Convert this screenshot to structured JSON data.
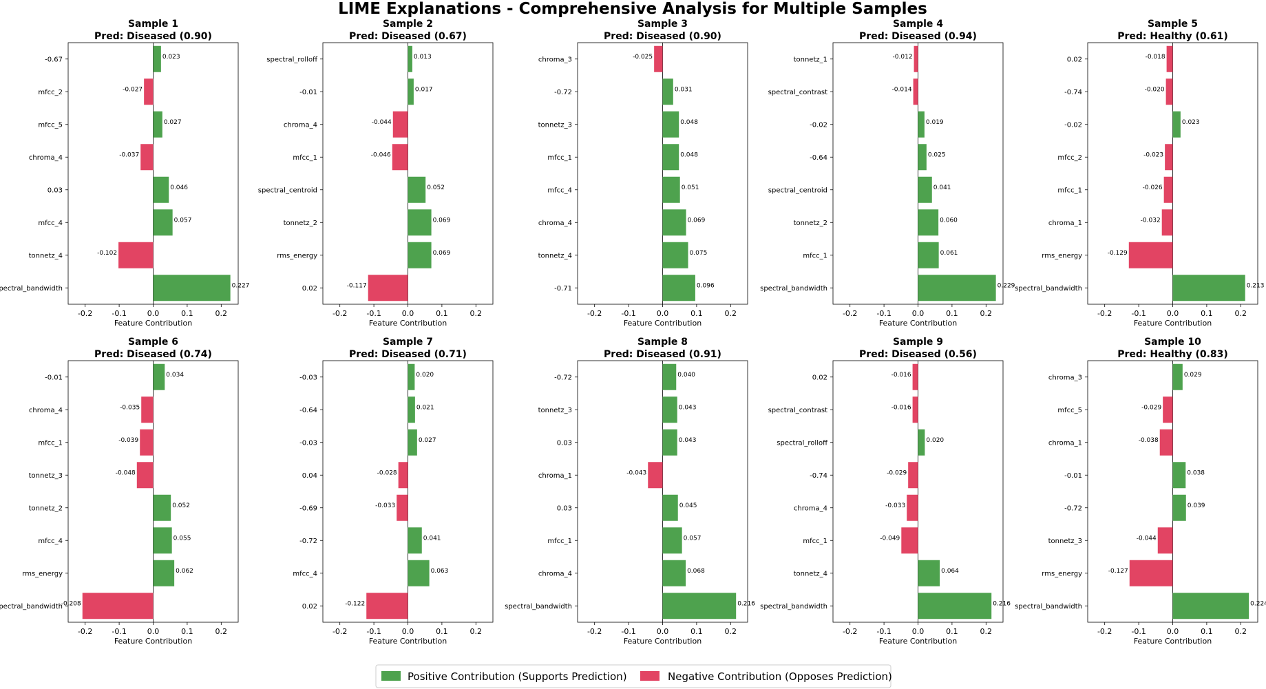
{
  "figure_title": "LIME Explanations - Comprehensive Analysis for Multiple Samples",
  "colors": {
    "positive": "#4ea24e",
    "negative": "#e24463"
  },
  "legend": {
    "positive": "Positive Contribution (Supports Prediction)",
    "negative": "Negative Contribution (Opposes Prediction)"
  },
  "chart_data": [
    {
      "type": "bar",
      "orientation": "horizontal",
      "title": "Sample 1",
      "subtitle": "Pred: Diseased (0.90)",
      "xlabel": "Feature Contribution",
      "xlim": [
        -0.25,
        0.25
      ],
      "xticks": [
        "-0.2",
        "-0.1",
        "0.0",
        "0.1",
        "0.2"
      ],
      "categories": [
        "-0.67",
        "mfcc_2",
        "mfcc_5",
        "chroma_4",
        "0.03",
        "mfcc_4",
        "tonnetz_4",
        "spectral_bandwidth"
      ],
      "values": [
        0.023,
        -0.027,
        0.027,
        -0.037,
        0.046,
        0.057,
        -0.102,
        0.227
      ],
      "labels": [
        "0.023",
        "-0.027",
        "0.027",
        "-0.037",
        "0.046",
        "0.057",
        "-0.102",
        "0.227"
      ]
    },
    {
      "type": "bar",
      "orientation": "horizontal",
      "title": "Sample 2",
      "subtitle": "Pred: Diseased (0.67)",
      "xlabel": "Feature Contribution",
      "xlim": [
        -0.25,
        0.25
      ],
      "xticks": [
        "-0.2",
        "-0.1",
        "0.0",
        "0.1",
        "0.2"
      ],
      "categories": [
        "spectral_rolloff",
        "-0.01",
        "chroma_4",
        "mfcc_1",
        "spectral_centroid",
        "tonnetz_2",
        "rms_energy",
        "0.02"
      ],
      "values": [
        0.013,
        0.017,
        -0.044,
        -0.046,
        0.052,
        0.069,
        0.069,
        -0.117
      ],
      "labels": [
        "0.013",
        "0.017",
        "-0.044",
        "-0.046",
        "0.052",
        "0.069",
        "0.069",
        "-0.117"
      ]
    },
    {
      "type": "bar",
      "orientation": "horizontal",
      "title": "Sample 3",
      "subtitle": "Pred: Diseased (0.90)",
      "xlabel": "Feature Contribution",
      "xlim": [
        -0.25,
        0.25
      ],
      "xticks": [
        "-0.2",
        "-0.1",
        "0.0",
        "0.1",
        "0.2"
      ],
      "categories": [
        "chroma_3",
        "-0.72",
        "tonnetz_3",
        "mfcc_1",
        "mfcc_4",
        "chroma_4",
        "tonnetz_4",
        "-0.71"
      ],
      "values": [
        -0.025,
        0.031,
        0.048,
        0.048,
        0.051,
        0.069,
        0.075,
        0.096
      ],
      "labels": [
        "-0.025",
        "0.031",
        "0.048",
        "0.048",
        "0.051",
        "0.069",
        "0.075",
        "0.096"
      ]
    },
    {
      "type": "bar",
      "orientation": "horizontal",
      "title": "Sample 4",
      "subtitle": "Pred: Diseased (0.94)",
      "xlabel": "Feature Contribution",
      "xlim": [
        -0.25,
        0.25
      ],
      "xticks": [
        "-0.2",
        "-0.1",
        "0.0",
        "0.1",
        "0.2"
      ],
      "categories": [
        "tonnetz_1",
        "spectral_contrast",
        "-0.02",
        "-0.64",
        "spectral_centroid",
        "tonnetz_2",
        "mfcc_1",
        "spectral_bandwidth"
      ],
      "values": [
        -0.012,
        -0.014,
        0.019,
        0.025,
        0.041,
        0.06,
        0.061,
        0.229
      ],
      "labels": [
        "-0.012",
        "-0.014",
        "0.019",
        "0.025",
        "0.041",
        "0.060",
        "0.061",
        "0.229"
      ]
    },
    {
      "type": "bar",
      "orientation": "horizontal",
      "title": "Sample 5",
      "subtitle": "Pred: Healthy (0.61)",
      "xlabel": "Feature Contribution",
      "xlim": [
        -0.25,
        0.25
      ],
      "xticks": [
        "-0.2",
        "-0.1",
        "0.0",
        "0.1",
        "0.2"
      ],
      "categories": [
        "0.02",
        "-0.74",
        "-0.02",
        "mfcc_2",
        "mfcc_1",
        "chroma_1",
        "rms_energy",
        "spectral_bandwidth"
      ],
      "values": [
        -0.018,
        -0.02,
        0.023,
        -0.023,
        -0.026,
        -0.032,
        -0.129,
        0.213
      ],
      "labels": [
        "-0.018",
        "-0.020",
        "0.023",
        "-0.023",
        "-0.026",
        "-0.032",
        "-0.129",
        "0.213"
      ]
    },
    {
      "type": "bar",
      "orientation": "horizontal",
      "title": "Sample 6",
      "subtitle": "Pred: Diseased (0.74)",
      "xlabel": "Feature Contribution",
      "xlim": [
        -0.25,
        0.25
      ],
      "xticks": [
        "-0.2",
        "-0.1",
        "0.0",
        "0.1",
        "0.2"
      ],
      "categories": [
        "-0.01",
        "chroma_4",
        "mfcc_1",
        "tonnetz_3",
        "tonnetz_2",
        "mfcc_4",
        "rms_energy",
        "spectral_bandwidth"
      ],
      "values": [
        0.034,
        -0.035,
        -0.039,
        -0.048,
        0.052,
        0.055,
        0.062,
        -0.208
      ],
      "labels": [
        "0.034",
        "-0.035",
        "-0.039",
        "-0.048",
        "0.052",
        "0.055",
        "0.062",
        "-0.208"
      ]
    },
    {
      "type": "bar",
      "orientation": "horizontal",
      "title": "Sample 7",
      "subtitle": "Pred: Diseased (0.71)",
      "xlabel": "Feature Contribution",
      "xlim": [
        -0.25,
        0.25
      ],
      "xticks": [
        "-0.2",
        "-0.1",
        "0.0",
        "0.1",
        "0.2"
      ],
      "categories": [
        "-0.03",
        "-0.64",
        "-0.03",
        "0.04",
        "-0.69",
        "-0.72",
        "mfcc_4",
        "0.02"
      ],
      "values": [
        0.02,
        0.021,
        0.027,
        -0.028,
        -0.033,
        0.041,
        0.063,
        -0.122
      ],
      "labels": [
        "0.020",
        "0.021",
        "0.027",
        "-0.028",
        "-0.033",
        "0.041",
        "0.063",
        "-0.122"
      ]
    },
    {
      "type": "bar",
      "orientation": "horizontal",
      "title": "Sample 8",
      "subtitle": "Pred: Diseased (0.91)",
      "xlabel": "Feature Contribution",
      "xlim": [
        -0.25,
        0.25
      ],
      "xticks": [
        "-0.2",
        "-0.1",
        "0.0",
        "0.1",
        "0.2"
      ],
      "categories": [
        "-0.72",
        "tonnetz_3",
        "0.03",
        "chroma_1",
        "0.03",
        "mfcc_1",
        "chroma_4",
        "spectral_bandwidth"
      ],
      "values": [
        0.04,
        0.043,
        0.043,
        -0.043,
        0.045,
        0.057,
        0.068,
        0.216
      ],
      "labels": [
        "0.040",
        "0.043",
        "0.043",
        "-0.043",
        "0.045",
        "0.057",
        "0.068",
        "0.216"
      ]
    },
    {
      "type": "bar",
      "orientation": "horizontal",
      "title": "Sample 9",
      "subtitle": "Pred: Diseased (0.56)",
      "xlabel": "Feature Contribution",
      "xlim": [
        -0.25,
        0.25
      ],
      "xticks": [
        "-0.2",
        "-0.1",
        "0.0",
        "0.1",
        "0.2"
      ],
      "categories": [
        "0.02",
        "spectral_contrast",
        "spectral_rolloff",
        "-0.74",
        "chroma_4",
        "mfcc_1",
        "tonnetz_4",
        "spectral_bandwidth"
      ],
      "values": [
        -0.016,
        -0.016,
        0.02,
        -0.029,
        -0.033,
        -0.049,
        0.064,
        0.216
      ],
      "labels": [
        "-0.016",
        "-0.016",
        "0.020",
        "-0.029",
        "-0.033",
        "-0.049",
        "0.064",
        "0.216"
      ]
    },
    {
      "type": "bar",
      "orientation": "horizontal",
      "title": "Sample 10",
      "subtitle": "Pred: Healthy (0.83)",
      "xlabel": "Feature Contribution",
      "xlim": [
        -0.25,
        0.25
      ],
      "xticks": [
        "-0.2",
        "-0.1",
        "0.0",
        "0.1",
        "0.2"
      ],
      "categories": [
        "chroma_3",
        "mfcc_5",
        "chroma_1",
        "-0.01",
        "-0.72",
        "tonnetz_3",
        "rms_energy",
        "spectral_bandwidth"
      ],
      "values": [
        0.029,
        -0.029,
        -0.038,
        0.038,
        0.039,
        -0.044,
        -0.127,
        0.224
      ],
      "labels": [
        "0.029",
        "-0.029",
        "-0.038",
        "0.038",
        "0.039",
        "-0.044",
        "-0.127",
        "0.224"
      ]
    }
  ]
}
